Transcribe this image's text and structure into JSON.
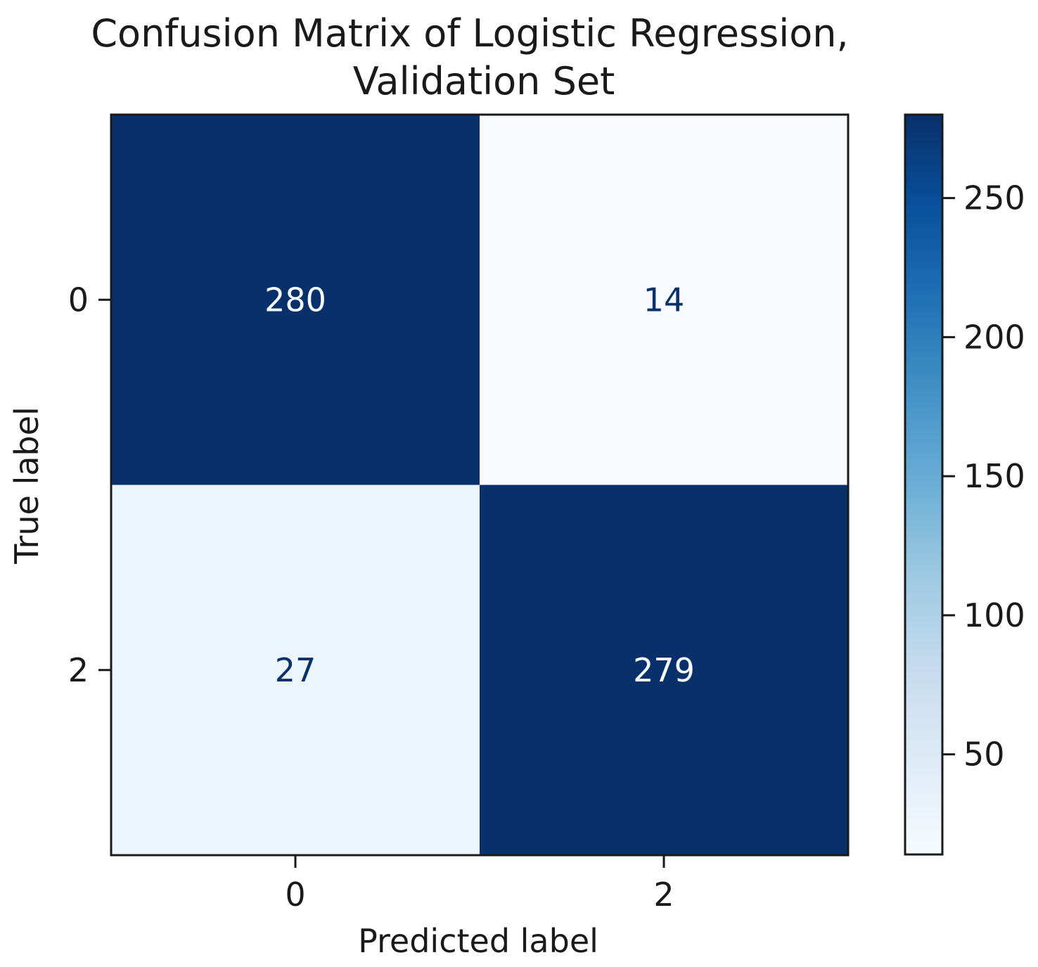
{
  "chart_data": {
    "type": "heatmap",
    "title_lines": [
      "Confusion Matrix of Logistic Regression,",
      "Validation Set"
    ],
    "xlabel": "Predicted label",
    "ylabel": "True label",
    "x_categories": [
      "0",
      "2"
    ],
    "y_categories": [
      "0",
      "2"
    ],
    "matrix": [
      [
        280,
        14
      ],
      [
        27,
        279
      ]
    ],
    "colormap": "Blues",
    "vmin": 14,
    "vmax": 280,
    "colorbar_ticks": [
      50,
      100,
      150,
      200,
      250
    ],
    "text_colors": {
      "on_dark": "#f7fbff",
      "on_light": "#08306b"
    }
  }
}
